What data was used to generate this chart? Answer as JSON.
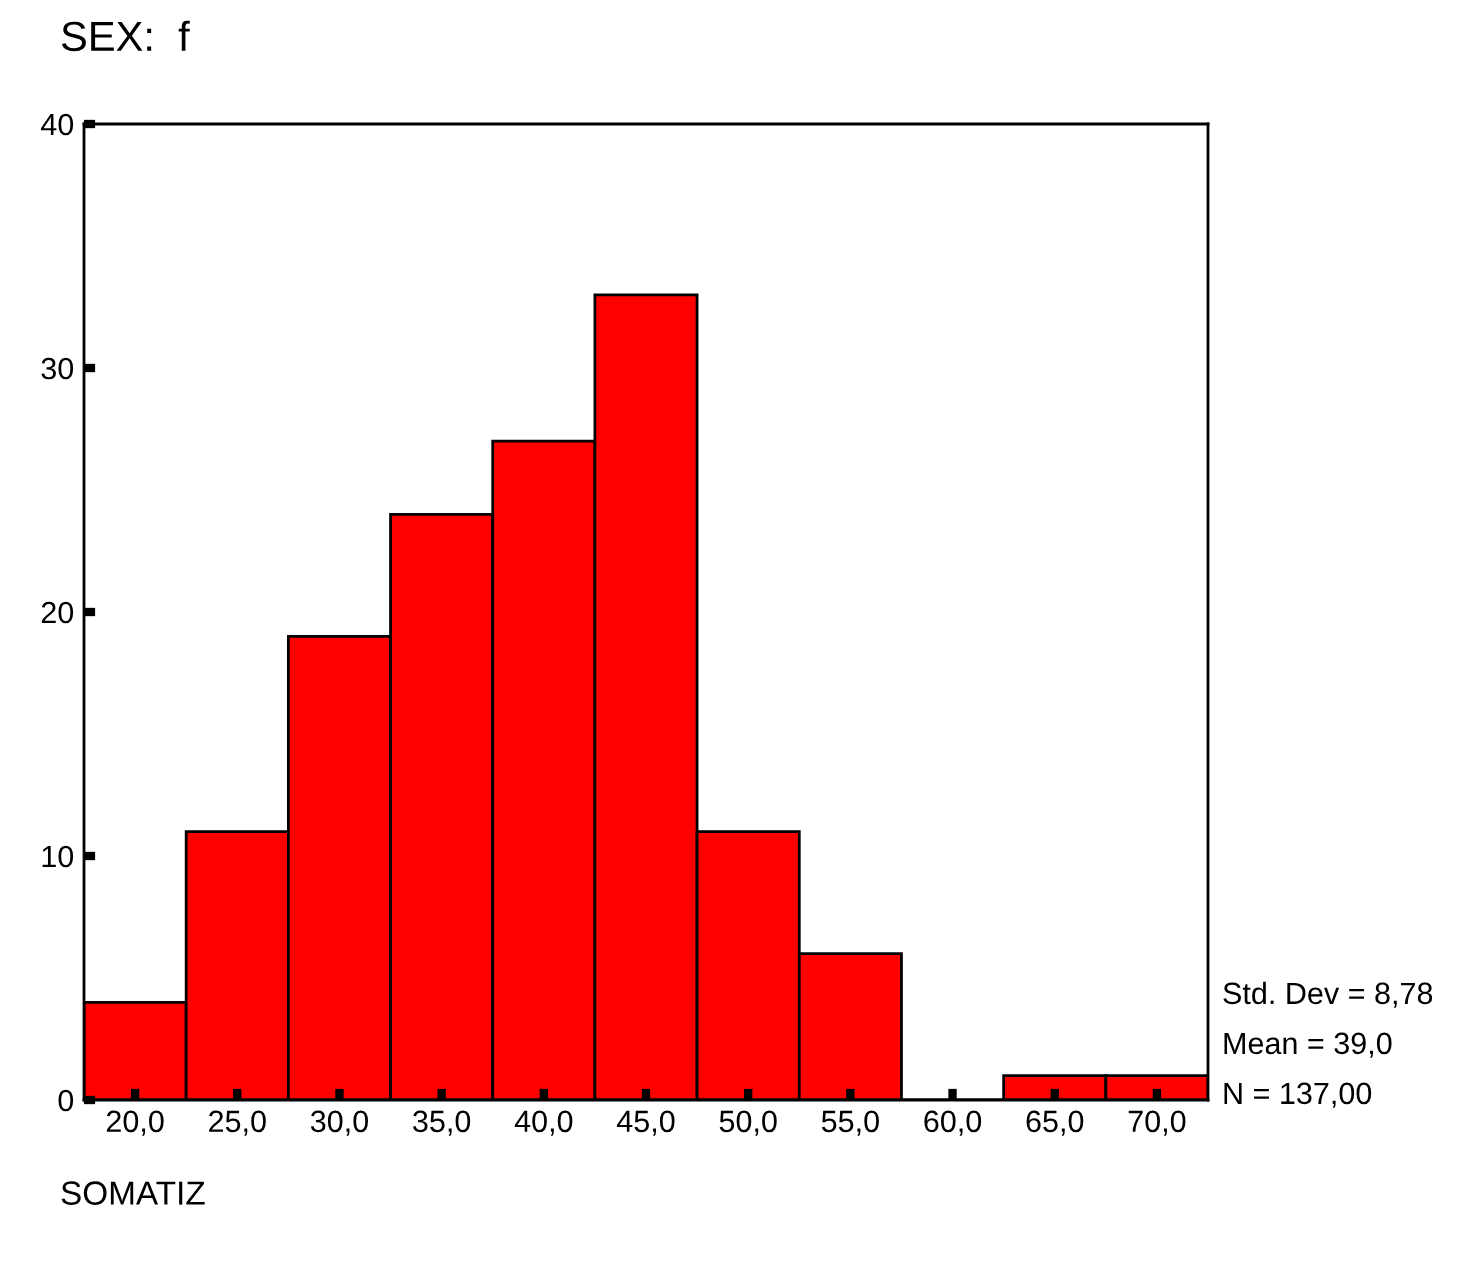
{
  "chart_data": {
    "type": "histogram",
    "title": "SEX:  f",
    "xlabel": "SOMATIZ",
    "bins": [
      17.5,
      22.5,
      27.5,
      32.5,
      37.5,
      42.5,
      47.5,
      52.5,
      57.5,
      62.5,
      67.5,
      72.5
    ],
    "values": [
      4,
      11,
      19,
      24,
      27,
      33,
      11,
      6,
      0,
      1,
      1
    ],
    "color": "#ff0000",
    "xlim": [
      17.5,
      72.5
    ],
    "xticks": [
      {
        "value": 20,
        "label": "20,0"
      },
      {
        "value": 25,
        "label": "25,0"
      },
      {
        "value": 30,
        "label": "30,0"
      },
      {
        "value": 35,
        "label": "35,0"
      },
      {
        "value": 40,
        "label": "40,0"
      },
      {
        "value": 45,
        "label": "45,0"
      },
      {
        "value": 50,
        "label": "50,0"
      },
      {
        "value": 55,
        "label": "55,0"
      },
      {
        "value": 60,
        "label": "60,0"
      },
      {
        "value": 65,
        "label": "65,0"
      },
      {
        "value": 70,
        "label": "70,0"
      }
    ],
    "ylim": [
      0,
      40
    ],
    "yticks": [
      0,
      10,
      20,
      30,
      40
    ],
    "annotations": [
      "Std. Dev = 8,78",
      "Mean = 39,0",
      "N = 137,00"
    ],
    "grid": false,
    "legend": false
  }
}
